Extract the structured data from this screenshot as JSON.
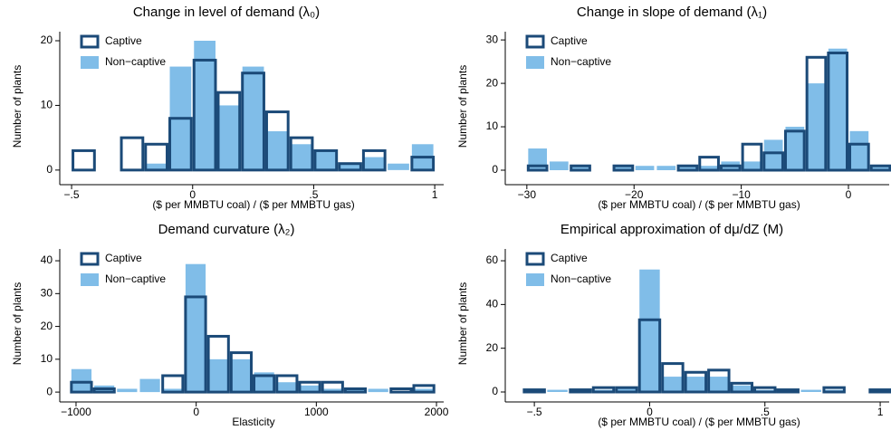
{
  "chart_data": [
    {
      "type": "histogram",
      "title": "Change in level of demand (λ₀)",
      "xlabel": "($ per MMBTU coal) / ($ per MMBTU gas)",
      "ylabel": "Number of plants",
      "bins": [
        -0.5,
        -0.4,
        -0.3,
        -0.2,
        -0.1,
        0,
        0.1,
        0.2,
        0.3,
        0.4,
        0.5,
        0.6,
        0.7,
        0.8,
        0.9,
        1.0
      ],
      "series": [
        {
          "name": "Non−captive",
          "color": "#80bde8",
          "style": "filled",
          "values": [
            0,
            0,
            0,
            1,
            16,
            20,
            10,
            16,
            6,
            4,
            3,
            1,
            2,
            1,
            4
          ]
        },
        {
          "name": "Captive",
          "color": "#1b4a78",
          "style": "outline",
          "values": [
            3,
            0,
            5,
            4,
            8,
            17,
            12,
            15,
            9,
            5,
            3,
            1,
            3,
            0,
            2
          ]
        }
      ],
      "xlim": [
        -0.504,
        1.037
      ],
      "ylim": [
        -1.7,
        21.4
      ],
      "xticks": [
        {
          "value": -0.5,
          "label": "−.5"
        },
        0,
        {
          "value": 0.5,
          "label": ".5"
        },
        1
      ],
      "yticks": [
        0,
        10,
        20
      ],
      "legend": "upper left"
    },
    {
      "type": "histogram",
      "title": "Change in slope of demand (λ₁)",
      "xlabel": "($ per MMBTU coal) / ($ per MMBTU gas)",
      "ylabel": "Number of plants",
      "bins": [
        -30,
        -28,
        -26,
        -24,
        -22,
        -20,
        -18,
        -16,
        -14,
        -12,
        -10,
        -8,
        -6,
        -4,
        -2,
        0,
        2,
        4
      ],
      "series": [
        {
          "name": "Non−captive",
          "color": "#80bde8",
          "style": "filled",
          "values": [
            5,
            2,
            1,
            0,
            1,
            1,
            1,
            1,
            1,
            2,
            2,
            7,
            10,
            20,
            28,
            9,
            1
          ]
        },
        {
          "name": "Captive",
          "color": "#1b4a78",
          "style": "outline",
          "values": [
            1,
            0,
            1,
            0,
            1,
            0,
            0,
            1,
            3,
            1,
            6,
            4,
            9,
            26,
            27,
            6,
            1
          ]
        }
      ],
      "xlim": [
        -31.0,
        3.8
      ],
      "ylim": [
        -2.5,
        31.9
      ],
      "xticks": [
        {
          "value": -30,
          "label": "−30"
        },
        {
          "value": -20,
          "label": "−20"
        },
        {
          "value": -10,
          "label": "−10"
        },
        0
      ],
      "yticks": [
        0,
        10,
        20,
        30
      ],
      "legend": "upper left"
    },
    {
      "type": "histogram",
      "title": "Demand curvature (λ₂)",
      "xlabel": "Elasticity",
      "ylabel": "Number of plants",
      "bins": [
        -1050,
        -860,
        -670,
        -480,
        -290,
        -100,
        90,
        280,
        470,
        660,
        850,
        1040,
        1230,
        1420,
        1610,
        1800,
        1990
      ],
      "series": [
        {
          "name": "Non−captive",
          "color": "#80bde8",
          "style": "filled",
          "values": [
            7,
            2,
            1,
            4,
            1,
            39,
            10,
            10,
            6,
            3,
            2,
            1,
            1,
            1,
            0,
            1
          ]
        },
        {
          "name": "Captive",
          "color": "#1b4a78",
          "style": "outline",
          "values": [
            3,
            1,
            0,
            0,
            5,
            29,
            17,
            12,
            5,
            5,
            3,
            3,
            1,
            0,
            1,
            2
          ]
        }
      ],
      "xlim": [
        -1045,
        2060
      ],
      "ylim": [
        -1.9,
        43.6
      ],
      "xticks": [
        {
          "value": -1000,
          "label": "−1000"
        },
        0,
        1000,
        2000
      ],
      "yticks": [
        0,
        10,
        20,
        30,
        40
      ],
      "legend": "upper left"
    },
    {
      "type": "histogram",
      "title": "Empirical approximation of dμ/dZ (M)",
      "xlabel": "($ per MMBTU coal) / ($ per MMBTU gas)",
      "ylabel": "Number of plants",
      "bins": [
        -0.55,
        -0.45,
        -0.35,
        -0.25,
        -0.15,
        -0.05,
        0.05,
        0.15,
        0.25,
        0.35,
        0.45,
        0.55,
        0.65,
        0.75,
        0.85,
        0.95,
        1.05
      ],
      "series": [
        {
          "name": "Non−captive",
          "color": "#80bde8",
          "style": "filled",
          "values": [
            1,
            1,
            1,
            1,
            2,
            56,
            7,
            7,
            7,
            3,
            1,
            1,
            1,
            1,
            0,
            1
          ]
        },
        {
          "name": "Captive",
          "color": "#1b4a78",
          "style": "outline",
          "values": [
            1,
            0,
            1,
            2,
            2,
            33,
            13,
            9,
            10,
            4,
            2,
            1,
            0,
            2,
            0,
            1
          ]
        }
      ],
      "xlim": [
        -0.579,
        1.039
      ],
      "ylim": [
        -2.9,
        65.4
      ],
      "xticks": [
        {
          "value": -0.5,
          "label": "−.5"
        },
        0,
        {
          "value": 0.5,
          "label": ".5"
        },
        1
      ],
      "yticks": [
        0,
        20,
        40,
        60
      ],
      "legend": "upper left"
    }
  ]
}
